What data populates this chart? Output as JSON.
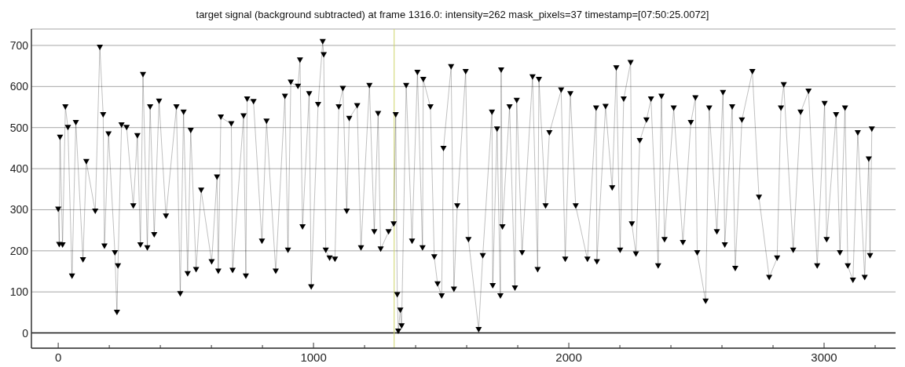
{
  "chart_data": {
    "type": "line",
    "title": "target signal (background subtracted) at frame 1316.0: intensity=262 mask_pixels=37 timestamp=[07:50:25.0072]",
    "x": [
      0,
      4,
      7,
      17,
      28,
      38,
      54,
      69,
      97,
      110,
      145,
      163,
      176,
      181,
      197,
      222,
      230,
      234,
      248,
      268,
      294,
      310,
      322,
      332,
      349,
      360,
      376,
      395,
      422,
      463,
      478,
      491,
      507,
      519,
      540,
      560,
      601,
      622,
      627,
      637,
      678,
      683,
      726,
      735,
      740,
      765,
      798,
      816,
      852,
      888,
      900,
      911,
      939,
      947,
      957,
      983,
      991,
      1018,
      1036,
      1040,
      1048,
      1063,
      1084,
      1099,
      1115,
      1130,
      1140,
      1171,
      1186,
      1219,
      1238,
      1253,
      1263,
      1294,
      1314,
      1322,
      1328,
      1332,
      1340,
      1345,
      1363,
      1386,
      1407,
      1427,
      1430,
      1458,
      1473,
      1486,
      1502,
      1509,
      1539,
      1550,
      1563,
      1596,
      1607,
      1647,
      1663,
      1699,
      1702,
      1719,
      1732,
      1735,
      1740,
      1768,
      1789,
      1796,
      1817,
      1858,
      1878,
      1883,
      1909,
      1924,
      1970,
      1986,
      2006,
      2027,
      2073,
      2107,
      2110,
      2144,
      2170,
      2186,
      2201,
      2215,
      2242,
      2247,
      2263,
      2278,
      2304,
      2322,
      2350,
      2363,
      2375,
      2411,
      2447,
      2478,
      2496,
      2503,
      2536,
      2550,
      2580,
      2604,
      2611,
      2640,
      2652,
      2678,
      2719,
      2745,
      2785,
      2816,
      2831,
      2842,
      2879,
      2908,
      2939,
      2973,
      3002,
      3010,
      3047,
      3062,
      3082,
      3093,
      3113,
      3132,
      3159,
      3175,
      3180,
      3187
    ],
    "series": [
      {
        "color": "#000000",
        "values": [
          301,
          215,
          476,
          214,
          550,
          500,
          138,
          512,
          178,
          417,
          296,
          695,
          531,
          211,
          484,
          195,
          50,
          163,
          506,
          500,
          309,
          480,
          214,
          629,
          207,
          550,
          239,
          564,
          284,
          550,
          95,
          537,
          144,
          493,
          154,
          347,
          173,
          379,
          150,
          525,
          509,
          152,
          528,
          138,
          569,
          563,
          223,
          515,
          150,
          576,
          201,
          610,
          600,
          664,
          258,
          582,
          112,
          556,
          709,
          677,
          201,
          182,
          179,
          550,
          595,
          296,
          522,
          553,
          207,
          602,
          246,
          534,
          204,
          246,
          265,
          531,
          93,
          4,
          55,
          17,
          602,
          223,
          634,
          207,
          617,
          550,
          185,
          119,
          90,
          449,
          648,
          106,
          309,
          636,
          227,
          8,
          188,
          537,
          115,
          496,
          90,
          640,
          258,
          550,
          109,
          566,
          195,
          623,
          154,
          617,
          309,
          487,
          591,
          179,
          582,
          309,
          179,
          547,
          173,
          551,
          353,
          645,
          201,
          569,
          658,
          265,
          192,
          468,
          518,
          569,
          163,
          576,
          227,
          547,
          220,
          512,
          572,
          195,
          77,
          547,
          246,
          585,
          214,
          550,
          157,
          518,
          636,
          330,
          135,
          182,
          547,
          604,
          201,
          537,
          588,
          163,
          558,
          227,
          531,
          195,
          547,
          163,
          128,
          487,
          135,
          423,
          188,
          496
        ]
      }
    ],
    "xlim": [
      -105,
      3280
    ],
    "xticks": [
      0,
      {
        "value": 200,
        "label": null
      },
      {
        "value": 400,
        "label": null
      },
      {
        "value": 600,
        "label": null
      },
      {
        "value": 800,
        "label": null
      },
      1000,
      {
        "value": 1200,
        "label": null
      },
      {
        "value": 1400,
        "label": null
      },
      {
        "value": 1600,
        "label": null
      },
      {
        "value": 1800,
        "label": null
      },
      2000,
      {
        "value": 2200,
        "label": null
      },
      {
        "value": 2400,
        "label": null
      },
      {
        "value": 2600,
        "label": null
      },
      {
        "value": 2800,
        "label": null
      },
      3000,
      {
        "value": 3200,
        "label": null
      }
    ],
    "ylim": [
      -37,
      740
    ],
    "yticks": [
      0,
      100,
      200,
      300,
      400,
      500,
      600,
      700
    ],
    "grid": "y",
    "marker": "triangle",
    "line_style": "solid",
    "ref_lines": [
      {
        "axis": "y",
        "value": 0,
        "color": "#1a1a1a"
      },
      {
        "axis": "x",
        "value": 1316,
        "color": "#cdd46a"
      }
    ]
  }
}
